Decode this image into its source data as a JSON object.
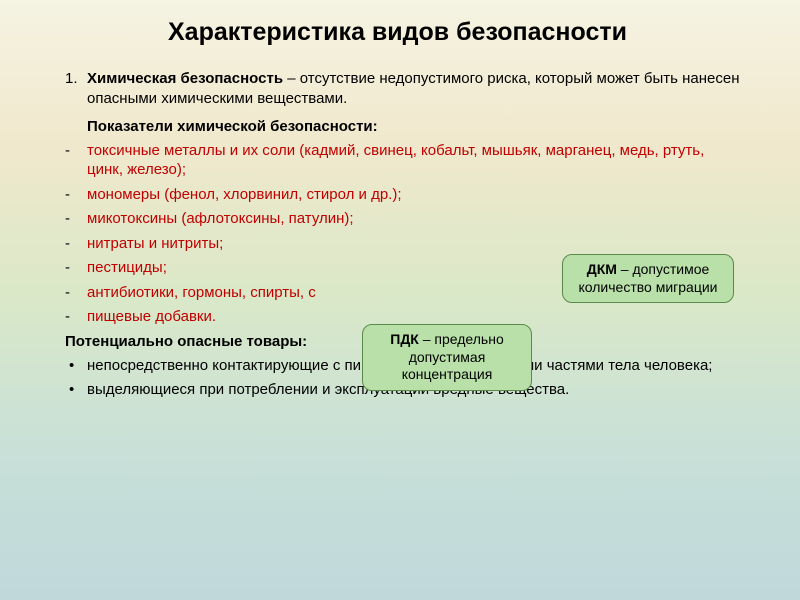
{
  "title": "Характеристика видов безопасности",
  "title_fontsize": 25,
  "body_fontsize": 15,
  "text_color": "#000000",
  "red_color": "#c00000",
  "callout_bg": "#b8e0a8",
  "callout_border": "#5a8a4a",
  "item1": {
    "number": "1.",
    "bold": "Химическая безопасность",
    "rest": " – отсутствие недопустимого риска, который может быть нанесен опасными химическими веществами."
  },
  "indicators_label": "Показатели химической безопасности:",
  "red_items": [
    "токсичные металлы и их соли (кадмий, свинец, кобальт, мышьяк, марганец, медь, ртуть, цинк, железо);",
    "мономеры (фенол, хлорвинил, стирол и др.);",
    "микотоксины (афлотоксины, патулин);",
    "нитраты и нитриты;",
    "пестициды;",
    "антибиотики, гормоны, спирты, с",
    "пищевые добавки."
  ],
  "hazard_label": "Потенциально опасные товары:",
  "hazard_items": [
    "непосредственно контактирующие с пищей или незащищенными частями тела человека;",
    "выделяющиеся при потреблении и эксплуатации вредные вещества."
  ],
  "callouts": [
    {
      "bold": "ПДК",
      "text": " – предельно допустимая концентрация"
    },
    {
      "bold": "ДКМ",
      "text": " – допустимое количество миграции"
    }
  ]
}
